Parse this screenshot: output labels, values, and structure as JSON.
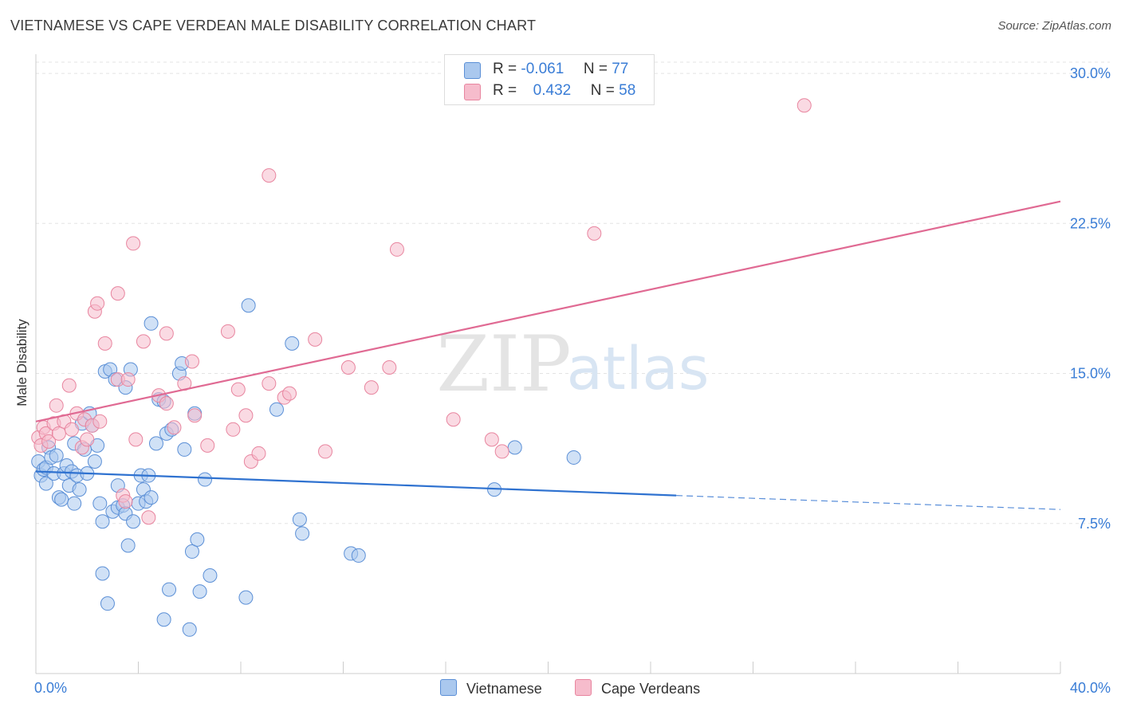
{
  "title": "VIETNAMESE VS CAPE VERDEAN MALE DISABILITY CORRELATION CHART",
  "source": "Source: ZipAtlas.com",
  "watermark": {
    "zip": "ZIP",
    "atlas": "atlas"
  },
  "legend": {
    "r_label": "R =",
    "n_label": "N =",
    "vietnamese": {
      "r": "-0.061",
      "n": "77"
    },
    "cape_verdean": {
      "r": "0.432",
      "n": "58"
    }
  },
  "bottom_legend": [
    "Vietnamese",
    "Cape Verdeans"
  ],
  "colors": {
    "blue_fill": "#aac8ee",
    "blue_stroke": "#5b8fd6",
    "blue_line": "#2f72d0",
    "pink_fill": "#f6bccc",
    "pink_stroke": "#e8859f",
    "pink_line": "#e06a93",
    "axis_text": "#3a7dd6"
  },
  "chart_data": {
    "type": "scatter",
    "title": "VIETNAMESE VS CAPE VERDEAN MALE DISABILITY CORRELATION CHART",
    "xlabel": "",
    "ylabel": "Male Disability",
    "xlim": [
      0,
      40
    ],
    "ylim": [
      0,
      30.8
    ],
    "x_tick_labels": [
      "0.0%",
      "40.0%"
    ],
    "y_ticks": [
      7.5,
      15.0,
      22.5,
      30.0
    ],
    "y_tick_labels": [
      "7.5%",
      "15.0%",
      "22.5%",
      "30.0%"
    ],
    "grid": true,
    "series": [
      {
        "name": "Vietnamese",
        "r": -0.061,
        "n": 77,
        "trend": {
          "x0": 0,
          "y0": 10.1,
          "x1": 25,
          "y1": 8.9,
          "dash_to_x": 40,
          "dash_to_y": 8.2
        },
        "points": [
          [
            0.1,
            10.6
          ],
          [
            0.2,
            9.9
          ],
          [
            0.3,
            10.2
          ],
          [
            0.4,
            10.3
          ],
          [
            0.4,
            9.5
          ],
          [
            0.5,
            11.3
          ],
          [
            0.6,
            10.8
          ],
          [
            0.7,
            10.0
          ],
          [
            0.8,
            10.9
          ],
          [
            0.9,
            8.8
          ],
          [
            1.0,
            8.7
          ],
          [
            1.1,
            10.0
          ],
          [
            1.2,
            10.4
          ],
          [
            1.3,
            9.4
          ],
          [
            1.4,
            10.1
          ],
          [
            1.5,
            11.5
          ],
          [
            1.5,
            8.5
          ],
          [
            1.6,
            9.9
          ],
          [
            1.7,
            9.2
          ],
          [
            1.8,
            12.5
          ],
          [
            1.9,
            11.2
          ],
          [
            2.0,
            10.0
          ],
          [
            2.1,
            13.0
          ],
          [
            2.2,
            12.4
          ],
          [
            2.3,
            10.6
          ],
          [
            2.4,
            11.4
          ],
          [
            2.5,
            8.5
          ],
          [
            2.6,
            5.0
          ],
          [
            2.6,
            7.6
          ],
          [
            2.7,
            15.1
          ],
          [
            2.8,
            3.5
          ],
          [
            2.9,
            15.2
          ],
          [
            3.0,
            8.1
          ],
          [
            3.1,
            14.7
          ],
          [
            3.2,
            8.3
          ],
          [
            3.2,
            9.4
          ],
          [
            3.4,
            8.4
          ],
          [
            3.5,
            14.3
          ],
          [
            3.5,
            8.0
          ],
          [
            3.6,
            6.4
          ],
          [
            3.7,
            15.2
          ],
          [
            3.8,
            7.6
          ],
          [
            4.0,
            8.5
          ],
          [
            4.1,
            9.9
          ],
          [
            4.2,
            9.2
          ],
          [
            4.3,
            8.6
          ],
          [
            4.4,
            9.9
          ],
          [
            4.5,
            8.8
          ],
          [
            4.5,
            17.5
          ],
          [
            4.7,
            11.5
          ],
          [
            4.8,
            13.7
          ],
          [
            5.0,
            2.7
          ],
          [
            5.0,
            13.6
          ],
          [
            5.1,
            12.0
          ],
          [
            5.2,
            4.2
          ],
          [
            5.3,
            12.2
          ],
          [
            5.6,
            15.0
          ],
          [
            5.7,
            15.5
          ],
          [
            5.8,
            11.2
          ],
          [
            6.0,
            2.2
          ],
          [
            6.1,
            6.1
          ],
          [
            6.2,
            13.0
          ],
          [
            6.3,
            6.7
          ],
          [
            6.4,
            4.1
          ],
          [
            6.6,
            9.7
          ],
          [
            6.8,
            4.9
          ],
          [
            8.2,
            3.8
          ],
          [
            8.3,
            18.4
          ],
          [
            9.4,
            13.2
          ],
          [
            10.0,
            16.5
          ],
          [
            10.3,
            7.7
          ],
          [
            10.4,
            7.0
          ],
          [
            12.3,
            6.0
          ],
          [
            12.6,
            5.9
          ],
          [
            17.9,
            9.2
          ],
          [
            18.7,
            11.3
          ],
          [
            21.0,
            10.8
          ]
        ]
      },
      {
        "name": "Cape Verdeans",
        "r": 0.432,
        "n": 58,
        "trend": {
          "x0": 0,
          "y0": 12.6,
          "x1": 40,
          "y1": 23.6
        },
        "points": [
          [
            0.1,
            11.8
          ],
          [
            0.2,
            11.4
          ],
          [
            0.3,
            12.3
          ],
          [
            0.4,
            12.0
          ],
          [
            0.5,
            11.6
          ],
          [
            0.7,
            12.5
          ],
          [
            0.8,
            13.4
          ],
          [
            0.9,
            12.0
          ],
          [
            1.1,
            12.6
          ],
          [
            1.3,
            14.4
          ],
          [
            1.4,
            12.2
          ],
          [
            1.6,
            13.0
          ],
          [
            1.8,
            11.3
          ],
          [
            1.9,
            12.7
          ],
          [
            2.0,
            11.7
          ],
          [
            2.2,
            12.4
          ],
          [
            2.3,
            18.1
          ],
          [
            2.4,
            18.5
          ],
          [
            2.5,
            12.6
          ],
          [
            2.7,
            16.5
          ],
          [
            3.2,
            14.7
          ],
          [
            3.2,
            19.0
          ],
          [
            3.4,
            8.9
          ],
          [
            3.5,
            8.6
          ],
          [
            3.6,
            14.7
          ],
          [
            3.8,
            21.5
          ],
          [
            3.9,
            11.7
          ],
          [
            4.2,
            16.6
          ],
          [
            4.4,
            7.8
          ],
          [
            4.8,
            13.9
          ],
          [
            5.1,
            13.5
          ],
          [
            5.1,
            17.0
          ],
          [
            5.4,
            12.3
          ],
          [
            5.8,
            14.5
          ],
          [
            6.1,
            15.6
          ],
          [
            6.2,
            12.9
          ],
          [
            6.7,
            11.4
          ],
          [
            7.5,
            17.1
          ],
          [
            7.7,
            12.2
          ],
          [
            7.9,
            14.2
          ],
          [
            8.2,
            12.9
          ],
          [
            8.4,
            10.6
          ],
          [
            8.7,
            11.0
          ],
          [
            9.1,
            24.9
          ],
          [
            9.1,
            14.5
          ],
          [
            9.7,
            13.8
          ],
          [
            9.9,
            14.0
          ],
          [
            10.9,
            16.7
          ],
          [
            11.3,
            11.1
          ],
          [
            12.2,
            15.3
          ],
          [
            13.1,
            14.3
          ],
          [
            13.8,
            15.3
          ],
          [
            14.1,
            21.2
          ],
          [
            16.3,
            12.7
          ],
          [
            17.8,
            11.7
          ],
          [
            18.2,
            11.1
          ],
          [
            21.8,
            22.0
          ],
          [
            30.0,
            28.4
          ]
        ]
      }
    ]
  }
}
